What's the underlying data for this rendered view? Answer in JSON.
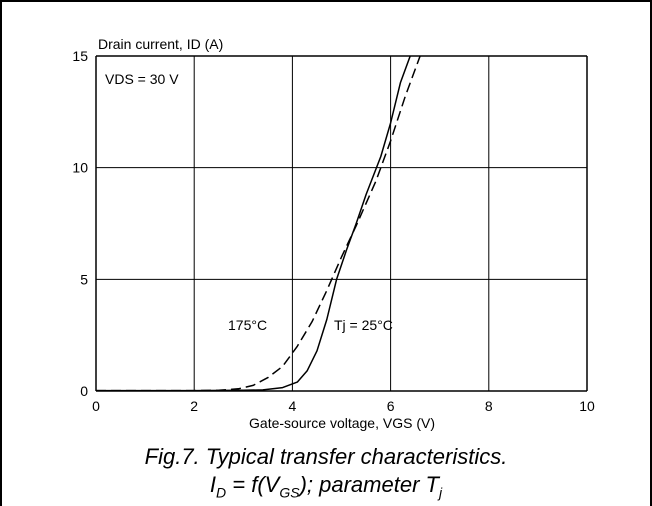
{
  "chart_data": {
    "type": "line",
    "ylabel": "Drain current, ID (A)",
    "xlabel": "Gate-source voltage, VGS (V)",
    "xlim": [
      0,
      10
    ],
    "ylim": [
      0,
      15
    ],
    "x_ticks": [
      "0",
      "2",
      "4",
      "6",
      "8",
      "10"
    ],
    "y_ticks": [
      "0",
      "5",
      "10",
      "15"
    ],
    "grid": true,
    "condition_label": "VDS = 30 V",
    "series": [
      {
        "name": "Tj = 25°C",
        "style": "solid",
        "points": [
          [
            0,
            0.02
          ],
          [
            2,
            0.02
          ],
          [
            3.0,
            0.03
          ],
          [
            3.4,
            0.05
          ],
          [
            3.8,
            0.15
          ],
          [
            4.1,
            0.4
          ],
          [
            4.3,
            0.9
          ],
          [
            4.5,
            1.8
          ],
          [
            4.7,
            3.2
          ],
          [
            4.9,
            5.0
          ],
          [
            5.1,
            6.3
          ],
          [
            5.3,
            7.5
          ],
          [
            5.5,
            8.8
          ],
          [
            5.8,
            10.5
          ],
          [
            6.0,
            12.0
          ],
          [
            6.2,
            13.8
          ],
          [
            6.4,
            15.0
          ]
        ]
      },
      {
        "name": "175°C",
        "style": "dashed",
        "points": [
          [
            0,
            0.02
          ],
          [
            2,
            0.02
          ],
          [
            2.5,
            0.03
          ],
          [
            2.9,
            0.1
          ],
          [
            3.2,
            0.25
          ],
          [
            3.5,
            0.6
          ],
          [
            3.8,
            1.1
          ],
          [
            4.1,
            2.0
          ],
          [
            4.4,
            3.1
          ],
          [
            4.7,
            4.5
          ],
          [
            5.0,
            6.0
          ],
          [
            5.3,
            7.4
          ],
          [
            5.7,
            9.4
          ],
          [
            6.0,
            11.2
          ],
          [
            6.3,
            13.2
          ],
          [
            6.6,
            15.0
          ]
        ]
      }
    ]
  },
  "caption": {
    "line1": "Fig.7.   Typical transfer characteristics.",
    "line2_prefix": "I",
    "line2_sub1": "D",
    "line2_mid": " = f(V",
    "line2_sub2": "GS",
    "line2_tail": "); parameter T",
    "line2_sub3": "j"
  }
}
